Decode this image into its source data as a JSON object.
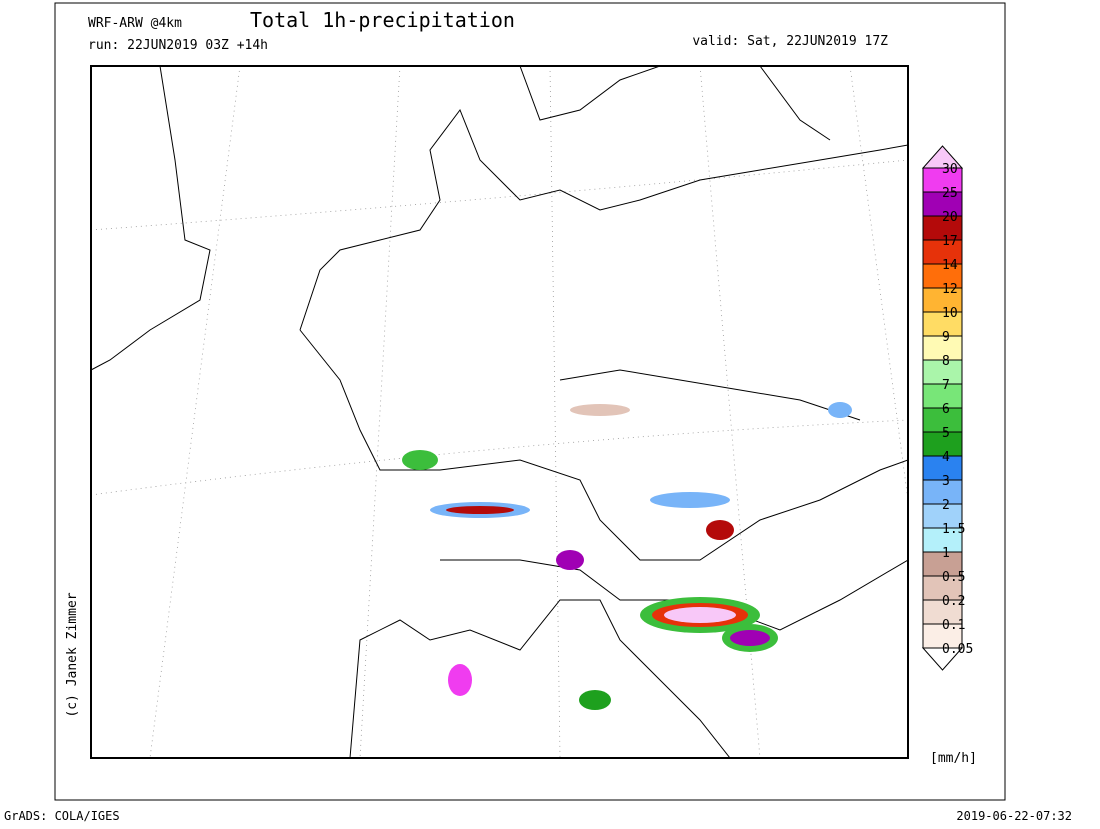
{
  "header": {
    "model": "WRF-ARW @4km",
    "title": "Total 1h-precipitation",
    "run": "run: 22JUN2019 03Z +14h",
    "valid": "valid: Sat, 22JUN2019 17Z"
  },
  "colorbar": {
    "levels": [
      0.05,
      0.1,
      0.2,
      0.5,
      1,
      1.5,
      2,
      3,
      4,
      5,
      6,
      7,
      8,
      9,
      10,
      12,
      14,
      17,
      20,
      25,
      30
    ],
    "colors": [
      "#ffffff",
      "#fbeee6",
      "#f0dcd2",
      "#e2c4b8",
      "#c8a094",
      "#b4f0fa",
      "#a0d2fa",
      "#78b4f8",
      "#2a82f0",
      "#1ea01e",
      "#3cbe3c",
      "#78e678",
      "#aaf5aa",
      "#fffab4",
      "#ffdc64",
      "#ffb432",
      "#ff6e0a",
      "#e6320a",
      "#b40a0a",
      "#a000b4",
      "#f03cf0",
      "#f8c8f8"
    ],
    "unit": "[mm/h]"
  },
  "credit": "(c) Janek Zimmer",
  "footer": {
    "software": "GrADS: COLA/IGES",
    "timestamp": "2019-06-22-07:32"
  }
}
